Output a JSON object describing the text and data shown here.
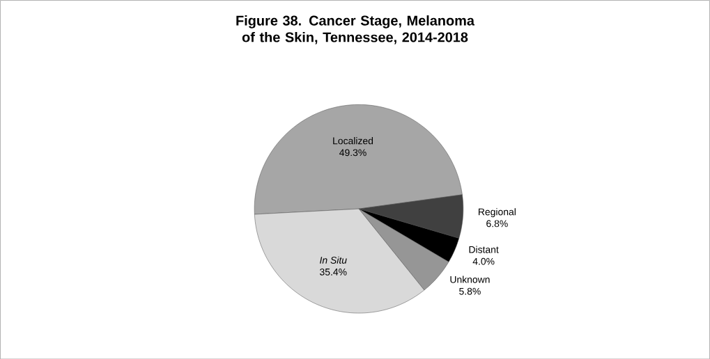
{
  "chart_data": {
    "type": "pie",
    "title": "Figure 38. Cancer Stage, Melanoma of the Skin, Tennessee, 2014-2018",
    "categories": [
      "Localized",
      "Regional",
      "Distant",
      "Unknown",
      "*In Situ*"
    ],
    "values": [
      49.3,
      6.8,
      4.0,
      5.8,
      35.4
    ],
    "value_labels": [
      "49.3%",
      "6.8%",
      "4.0%",
      "5.8%",
      "35.4%"
    ],
    "colors": [
      "#a6a6a6",
      "#404040",
      "#000000",
      "#969696",
      "#d9d9d9"
    ]
  }
}
